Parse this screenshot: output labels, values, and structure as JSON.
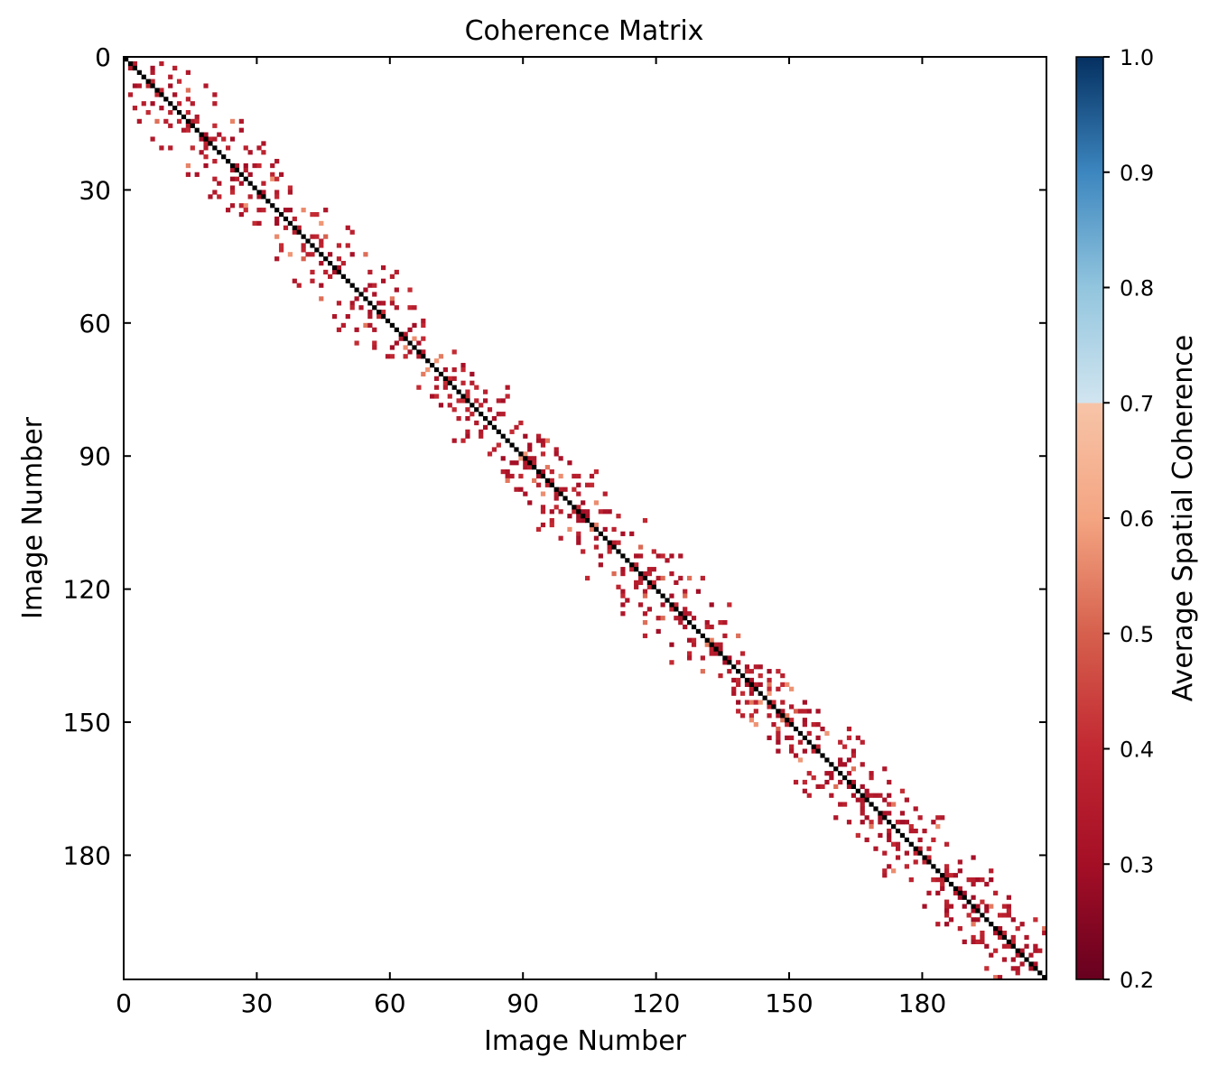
{
  "chart_data": {
    "type": "heatmap",
    "title": "Coherence Matrix",
    "xlabel": "Image Number",
    "ylabel": "Image Number",
    "colorbar_label": "Average Spatial Coherence",
    "n": 208,
    "xlim": [
      0,
      208
    ],
    "ylim": [
      208,
      0
    ],
    "x_ticks": [
      0,
      30,
      60,
      90,
      120,
      150,
      180
    ],
    "y_ticks": [
      0,
      30,
      60,
      90,
      120,
      150,
      180
    ],
    "colorbar": {
      "min": 0.2,
      "max": 1.0,
      "ticks": [
        "0.2",
        "0.3",
        "0.4",
        "0.5",
        "0.6",
        "0.7",
        "0.8",
        "0.9",
        "1.0"
      ],
      "colormap": "RdBu (diverging, dark red at 0.2, white around 0.7, dark blue at 1.0)",
      "colors": [
        "#67001f",
        "#b2182b",
        "#d6604d",
        "#f4a582",
        "#fddbc7",
        "#d1e5f0",
        "#92c5de",
        "#4393c3",
        "#2166ac",
        "#053061"
      ]
    },
    "diagonal_value": 1.0,
    "diagonal_color": "#000000",
    "off_diagonal_band_halfwidth": 13,
    "off_diagonal_value_range": [
      0.25,
      0.65
    ],
    "typical_value": 0.35,
    "grid": false
  }
}
